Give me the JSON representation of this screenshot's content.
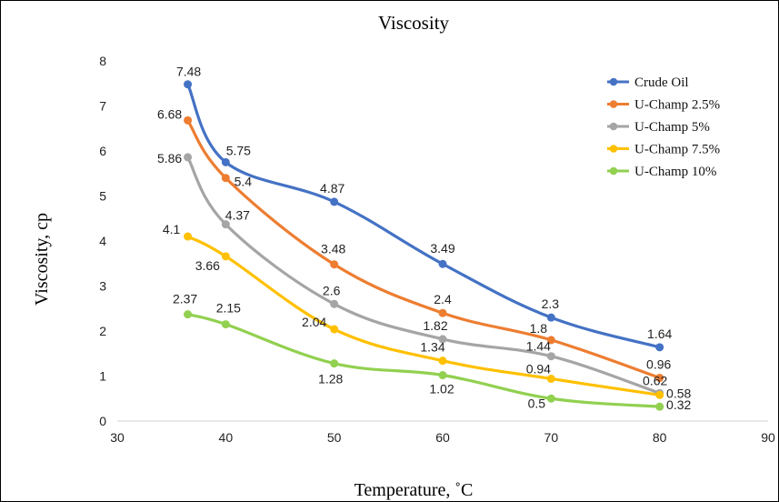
{
  "chart_data": {
    "type": "line",
    "title": "Viscosity",
    "xlabel": "Temperature,  ˚C",
    "ylabel": "Viscosity, cp",
    "xlim": [
      30,
      90
    ],
    "ylim": [
      0,
      8
    ],
    "x_ticks": [
      "30",
      "40",
      "50",
      "60",
      "70",
      "80",
      "90"
    ],
    "y_ticks": [
      "0",
      "1",
      "2",
      "3",
      "4",
      "5",
      "6",
      "7",
      "8"
    ],
    "grid": false,
    "legend_position": "top-right",
    "smooth": true,
    "series": [
      {
        "name": "Crude Oil",
        "color": "#4472C4",
        "x": [
          36.5,
          40,
          50,
          60,
          70,
          80
        ],
        "values": [
          7.48,
          5.75,
          4.87,
          3.49,
          2.3,
          1.64
        ],
        "labels": [
          "7.48",
          "5.75",
          "4.87",
          "3.49",
          "2.3",
          "1.64"
        ]
      },
      {
        "name": "U-Champ 2.5%",
        "color": "#ED7D31",
        "x": [
          36.5,
          40,
          50,
          60,
          70,
          80
        ],
        "values": [
          6.68,
          5.4,
          3.48,
          2.4,
          1.8,
          0.96
        ],
        "labels": [
          "6.68",
          "5.4",
          "3.48",
          "2.4",
          "1.8",
          "0.96"
        ]
      },
      {
        "name": "U-Champ 5%",
        "color": "#A5A5A5",
        "x": [
          36.5,
          40,
          50,
          60,
          70,
          80
        ],
        "values": [
          5.86,
          4.37,
          2.6,
          1.82,
          1.44,
          0.62
        ],
        "labels": [
          "5.86",
          "4.37",
          "2.6",
          "1.82",
          "1.44",
          "0.62"
        ]
      },
      {
        "name": "U-Champ 7.5%",
        "color": "#FFC000",
        "x": [
          36.5,
          40,
          50,
          60,
          70,
          80
        ],
        "values": [
          4.1,
          3.66,
          2.04,
          1.34,
          0.94,
          0.58
        ],
        "labels": [
          "4.1",
          "3.66",
          "2.04",
          "1.34",
          "0.94",
          "0.58"
        ]
      },
      {
        "name": "U-Champ 10%",
        "color": "#92D050",
        "x": [
          36.5,
          40,
          50,
          60,
          70,
          80
        ],
        "values": [
          2.37,
          2.15,
          1.28,
          1.02,
          0.5,
          0.32
        ],
        "labels": [
          "2.37",
          "2.15",
          "1.28",
          "1.02",
          "0.5",
          "0.32"
        ]
      }
    ]
  }
}
